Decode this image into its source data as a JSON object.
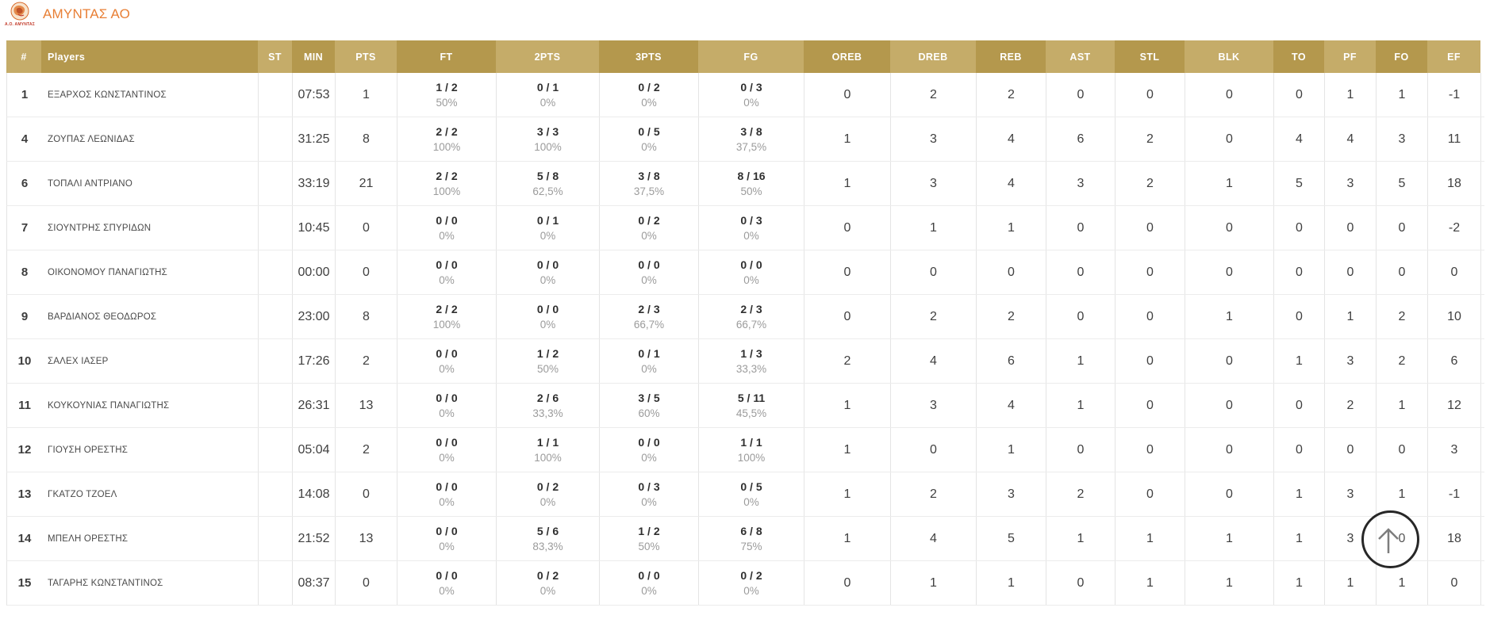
{
  "team": {
    "name": "ΑΜΥΝΤΑΣ ΑΟ",
    "logo_caption": "Α.Ο. ΑΜΥΝΤΑΣ"
  },
  "colors": {
    "accent_orange": "#e87f35",
    "header_gold_dark": "#b4984d",
    "header_gold_light": "#c5ac69"
  },
  "table": {
    "columns": [
      {
        "key": "number",
        "label": "#"
      },
      {
        "key": "player",
        "label": "Players"
      },
      {
        "key": "st",
        "label": "ST"
      },
      {
        "key": "min",
        "label": "MIN"
      },
      {
        "key": "pts",
        "label": "PTS"
      },
      {
        "key": "ft",
        "label": "FT"
      },
      {
        "key": "p2",
        "label": "2PTS"
      },
      {
        "key": "p3",
        "label": "3PTS"
      },
      {
        "key": "fg",
        "label": "FG"
      },
      {
        "key": "oreb",
        "label": "OREB"
      },
      {
        "key": "dreb",
        "label": "DREB"
      },
      {
        "key": "reb",
        "label": "REB"
      },
      {
        "key": "ast",
        "label": "AST"
      },
      {
        "key": "stl",
        "label": "STL"
      },
      {
        "key": "blk",
        "label": "BLK"
      },
      {
        "key": "to",
        "label": "TO"
      },
      {
        "key": "pf",
        "label": "PF"
      },
      {
        "key": "fo",
        "label": "FO"
      },
      {
        "key": "ef",
        "label": "EF"
      }
    ],
    "rows": [
      {
        "number": "1",
        "player": "ΕΞΑΡΧΟΣ ΚΩΝΣΤΑΝΤΙΝΟΣ",
        "st": "",
        "min": "07:53",
        "pts": "1",
        "ft": {
          "made": "1 / 2",
          "pct": "50%"
        },
        "p2": {
          "made": "0 / 1",
          "pct": "0%"
        },
        "p3": {
          "made": "0 / 2",
          "pct": "0%"
        },
        "fg": {
          "made": "0 / 3",
          "pct": "0%"
        },
        "oreb": "0",
        "dreb": "2",
        "reb": "2",
        "ast": "0",
        "stl": "0",
        "blk": "0",
        "to": "0",
        "pf": "1",
        "fo": "1",
        "ef": "-1"
      },
      {
        "number": "4",
        "player": "ΖΟΥΠΑΣ ΛΕΩΝΙΔΑΣ",
        "st": "",
        "min": "31:25",
        "pts": "8",
        "ft": {
          "made": "2 / 2",
          "pct": "100%"
        },
        "p2": {
          "made": "3 / 3",
          "pct": "100%"
        },
        "p3": {
          "made": "0 / 5",
          "pct": "0%"
        },
        "fg": {
          "made": "3 / 8",
          "pct": "37,5%"
        },
        "oreb": "1",
        "dreb": "3",
        "reb": "4",
        "ast": "6",
        "stl": "2",
        "blk": "0",
        "to": "4",
        "pf": "4",
        "fo": "3",
        "ef": "11"
      },
      {
        "number": "6",
        "player": "ΤΟΠΑΛΙ ΑΝΤΡΙΑΝΟ",
        "st": "",
        "min": "33:19",
        "pts": "21",
        "ft": {
          "made": "2 / 2",
          "pct": "100%"
        },
        "p2": {
          "made": "5 / 8",
          "pct": "62,5%"
        },
        "p3": {
          "made": "3 / 8",
          "pct": "37,5%"
        },
        "fg": {
          "made": "8 / 16",
          "pct": "50%"
        },
        "oreb": "1",
        "dreb": "3",
        "reb": "4",
        "ast": "3",
        "stl": "2",
        "blk": "1",
        "to": "5",
        "pf": "3",
        "fo": "5",
        "ef": "18"
      },
      {
        "number": "7",
        "player": "ΣΙΟΥΝΤΡΗΣ ΣΠΥΡΙΔΩΝ",
        "st": "",
        "min": "10:45",
        "pts": "0",
        "ft": {
          "made": "0 / 0",
          "pct": "0%"
        },
        "p2": {
          "made": "0 / 1",
          "pct": "0%"
        },
        "p3": {
          "made": "0 / 2",
          "pct": "0%"
        },
        "fg": {
          "made": "0 / 3",
          "pct": "0%"
        },
        "oreb": "0",
        "dreb": "1",
        "reb": "1",
        "ast": "0",
        "stl": "0",
        "blk": "0",
        "to": "0",
        "pf": "0",
        "fo": "0",
        "ef": "-2"
      },
      {
        "number": "8",
        "player": "ΟΙΚΟΝΟΜΟΥ ΠΑΝΑΓΙΩΤΗΣ",
        "st": "",
        "min": "00:00",
        "pts": "0",
        "ft": {
          "made": "0 / 0",
          "pct": "0%"
        },
        "p2": {
          "made": "0 / 0",
          "pct": "0%"
        },
        "p3": {
          "made": "0 / 0",
          "pct": "0%"
        },
        "fg": {
          "made": "0 / 0",
          "pct": "0%"
        },
        "oreb": "0",
        "dreb": "0",
        "reb": "0",
        "ast": "0",
        "stl": "0",
        "blk": "0",
        "to": "0",
        "pf": "0",
        "fo": "0",
        "ef": "0"
      },
      {
        "number": "9",
        "player": "ΒΑΡΔΙΑΝΟΣ ΘΕΟΔΩΡΟΣ",
        "st": "",
        "min": "23:00",
        "pts": "8",
        "ft": {
          "made": "2 / 2",
          "pct": "100%"
        },
        "p2": {
          "made": "0 / 0",
          "pct": "0%"
        },
        "p3": {
          "made": "2 / 3",
          "pct": "66,7%"
        },
        "fg": {
          "made": "2 / 3",
          "pct": "66,7%"
        },
        "oreb": "0",
        "dreb": "2",
        "reb": "2",
        "ast": "0",
        "stl": "0",
        "blk": "1",
        "to": "0",
        "pf": "1",
        "fo": "2",
        "ef": "10"
      },
      {
        "number": "10",
        "player": "ΣΑΛΕΧ ΙΑΣΕΡ",
        "st": "",
        "min": "17:26",
        "pts": "2",
        "ft": {
          "made": "0 / 0",
          "pct": "0%"
        },
        "p2": {
          "made": "1 / 2",
          "pct": "50%"
        },
        "p3": {
          "made": "0 / 1",
          "pct": "0%"
        },
        "fg": {
          "made": "1 / 3",
          "pct": "33,3%"
        },
        "oreb": "2",
        "dreb": "4",
        "reb": "6",
        "ast": "1",
        "stl": "0",
        "blk": "0",
        "to": "1",
        "pf": "3",
        "fo": "2",
        "ef": "6"
      },
      {
        "number": "11",
        "player": "ΚΟΥΚΟΥΝΙΑΣ ΠΑΝΑΓΙΩΤΗΣ",
        "st": "",
        "min": "26:31",
        "pts": "13",
        "ft": {
          "made": "0 / 0",
          "pct": "0%"
        },
        "p2": {
          "made": "2 / 6",
          "pct": "33,3%"
        },
        "p3": {
          "made": "3 / 5",
          "pct": "60%"
        },
        "fg": {
          "made": "5 / 11",
          "pct": "45,5%"
        },
        "oreb": "1",
        "dreb": "3",
        "reb": "4",
        "ast": "1",
        "stl": "0",
        "blk": "0",
        "to": "0",
        "pf": "2",
        "fo": "1",
        "ef": "12"
      },
      {
        "number": "12",
        "player": "ΓΙΟΥΣΗ ΟΡΕΣΤΗΣ",
        "st": "",
        "min": "05:04",
        "pts": "2",
        "ft": {
          "made": "0 / 0",
          "pct": "0%"
        },
        "p2": {
          "made": "1 / 1",
          "pct": "100%"
        },
        "p3": {
          "made": "0 / 0",
          "pct": "0%"
        },
        "fg": {
          "made": "1 / 1",
          "pct": "100%"
        },
        "oreb": "1",
        "dreb": "0",
        "reb": "1",
        "ast": "0",
        "stl": "0",
        "blk": "0",
        "to": "0",
        "pf": "0",
        "fo": "0",
        "ef": "3"
      },
      {
        "number": "13",
        "player": "ΓΚΑΤΖΟ ΤΖΟΕΛ",
        "st": "",
        "min": "14:08",
        "pts": "0",
        "ft": {
          "made": "0 / 0",
          "pct": "0%"
        },
        "p2": {
          "made": "0 / 2",
          "pct": "0%"
        },
        "p3": {
          "made": "0 / 3",
          "pct": "0%"
        },
        "fg": {
          "made": "0 / 5",
          "pct": "0%"
        },
        "oreb": "1",
        "dreb": "2",
        "reb": "3",
        "ast": "2",
        "stl": "0",
        "blk": "0",
        "to": "1",
        "pf": "3",
        "fo": "1",
        "ef": "-1"
      },
      {
        "number": "14",
        "player": "ΜΠΕΛΗ ΟΡΕΣΤΗΣ",
        "st": "",
        "min": "21:52",
        "pts": "13",
        "ft": {
          "made": "0 / 0",
          "pct": "0%"
        },
        "p2": {
          "made": "5 / 6",
          "pct": "83,3%"
        },
        "p3": {
          "made": "1 / 2",
          "pct": "50%"
        },
        "fg": {
          "made": "6 / 8",
          "pct": "75%"
        },
        "oreb": "1",
        "dreb": "4",
        "reb": "5",
        "ast": "1",
        "stl": "1",
        "blk": "1",
        "to": "1",
        "pf": "3",
        "fo": "0",
        "ef": "18"
      },
      {
        "number": "15",
        "player": "ΤΑΓΑΡΗΣ ΚΩΝΣΤΑΝΤΙΝΟΣ",
        "st": "",
        "min": "08:37",
        "pts": "0",
        "ft": {
          "made": "0 / 0",
          "pct": "0%"
        },
        "p2": {
          "made": "0 / 2",
          "pct": "0%"
        },
        "p3": {
          "made": "0 / 0",
          "pct": "0%"
        },
        "fg": {
          "made": "0 / 2",
          "pct": "0%"
        },
        "oreb": "0",
        "dreb": "1",
        "reb": "1",
        "ast": "0",
        "stl": "1",
        "blk": "1",
        "to": "1",
        "pf": "1",
        "fo": "1",
        "ef": "0"
      }
    ]
  }
}
